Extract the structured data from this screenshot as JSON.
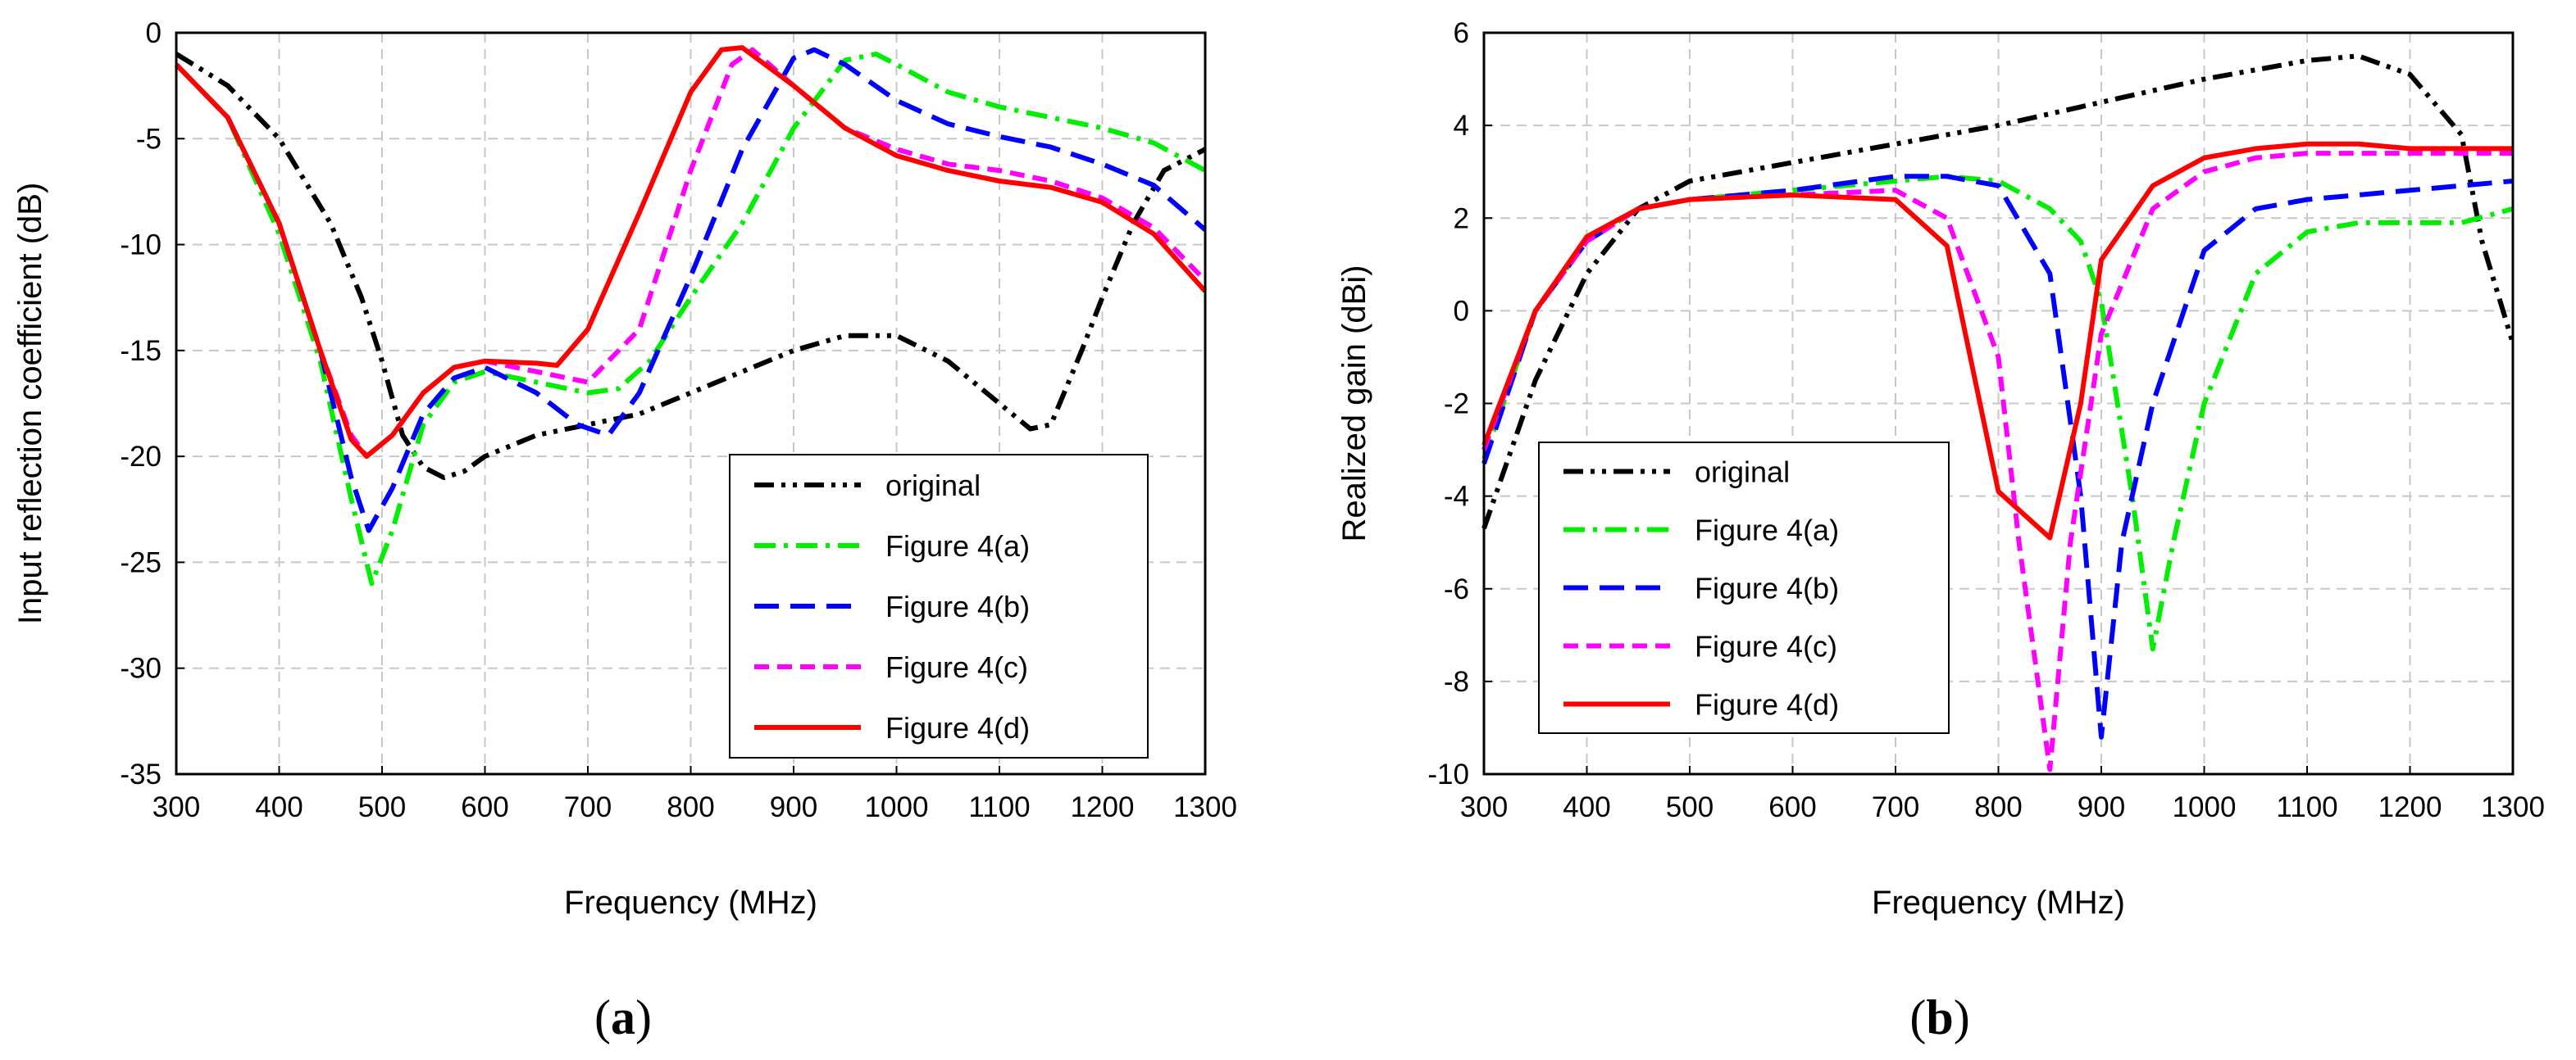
{
  "chart_data": [
    {
      "panel_label": "a",
      "type": "line",
      "xlabel": "Frequency (MHz)",
      "ylabel": "Input reflection coefficient (dB)",
      "xlim": [
        300,
        1300
      ],
      "ylim": [
        -35,
        0
      ],
      "xticks": [
        300,
        400,
        500,
        600,
        700,
        800,
        900,
        1000,
        1100,
        1200,
        1300
      ],
      "yticks": [
        -35,
        -30,
        -25,
        -20,
        -15,
        -10,
        -5,
        0
      ],
      "grid": true,
      "legend_position": "bottom-right",
      "series": [
        {
          "name": "original",
          "color": "#000000",
          "dash": "dashdotdot",
          "x": [
            300,
            350,
            400,
            450,
            480,
            500,
            520,
            540,
            560,
            580,
            600,
            650,
            700,
            750,
            800,
            850,
            900,
            950,
            1000,
            1050,
            1100,
            1130,
            1150,
            1180,
            1200,
            1230,
            1260,
            1300
          ],
          "y": [
            -1,
            -2.5,
            -5,
            -9,
            -12.5,
            -15.5,
            -19,
            -20.5,
            -21,
            -20.7,
            -20,
            -19,
            -18.5,
            -18,
            -17,
            -16,
            -15,
            -14.3,
            -14.3,
            -15.5,
            -17.5,
            -18.7,
            -18.5,
            -15,
            -12.5,
            -9,
            -6.5,
            -5.5
          ]
        },
        {
          "name": "Figure 4(a)",
          "color": "#00ee00",
          "dash": "dashdot",
          "x": [
            300,
            350,
            400,
            440,
            470,
            490,
            510,
            540,
            570,
            600,
            650,
            700,
            730,
            760,
            800,
            850,
            900,
            950,
            980,
            1000,
            1050,
            1100,
            1150,
            1200,
            1250,
            1300
          ],
          "y": [
            -1.5,
            -4,
            -9.5,
            -15.5,
            -22,
            -26,
            -23.5,
            -18.5,
            -16.5,
            -16,
            -16.5,
            -17,
            -16.8,
            -15.5,
            -12.5,
            -9,
            -4.5,
            -1.3,
            -1,
            -1.5,
            -2.8,
            -3.5,
            -4,
            -4.5,
            -5.2,
            -6.5
          ]
        },
        {
          "name": "Figure 4(b)",
          "color": "#0000ff",
          "dash": "dash",
          "x": [
            300,
            350,
            400,
            440,
            470,
            487,
            510,
            540,
            570,
            600,
            650,
            690,
            720,
            750,
            800,
            850,
            900,
            920,
            950,
            1000,
            1050,
            1100,
            1150,
            1200,
            1250,
            1300
          ],
          "y": [
            -1.5,
            -4,
            -9,
            -15,
            -21,
            -23.5,
            -21.5,
            -18,
            -16.3,
            -15.8,
            -17,
            -18.5,
            -19,
            -17,
            -11.5,
            -5.5,
            -1.2,
            -0.8,
            -1.5,
            -3.2,
            -4.3,
            -4.9,
            -5.4,
            -6.2,
            -7.2,
            -9.3
          ]
        },
        {
          "name": "Figure 4(c)",
          "color": "#ff00ff",
          "dash": "shortdash",
          "x": [
            300,
            350,
            400,
            440,
            470,
            485,
            510,
            540,
            570,
            600,
            650,
            700,
            750,
            800,
            840,
            860,
            900,
            950,
            1000,
            1050,
            1100,
            1150,
            1200,
            1250,
            1300
          ],
          "y": [
            -1.5,
            -4,
            -9,
            -15,
            -19,
            -20,
            -19,
            -17,
            -15.8,
            -15.5,
            -16,
            -16.5,
            -14,
            -6.5,
            -1.5,
            -0.8,
            -2.5,
            -4.5,
            -5.5,
            -6.2,
            -6.5,
            -7,
            -7.8,
            -9.2,
            -11.7
          ]
        },
        {
          "name": "Figure 4(d)",
          "color": "#ff0000",
          "dash": "solid",
          "x": [
            300,
            350,
            400,
            440,
            470,
            485,
            510,
            540,
            570,
            600,
            650,
            670,
            700,
            750,
            800,
            830,
            850,
            900,
            950,
            1000,
            1050,
            1100,
            1150,
            1200,
            1250,
            1300
          ],
          "y": [
            -1.5,
            -4,
            -9,
            -15,
            -19.2,
            -20,
            -19,
            -17,
            -15.8,
            -15.5,
            -15.6,
            -15.7,
            -14,
            -8.5,
            -2.8,
            -0.8,
            -0.7,
            -2.5,
            -4.5,
            -5.8,
            -6.5,
            -7,
            -7.3,
            -8,
            -9.5,
            -12.2
          ]
        }
      ]
    },
    {
      "panel_label": "b",
      "type": "line",
      "xlabel": "Frequency (MHz)",
      "ylabel": "Realized gain (dBi)",
      "xlim": [
        300,
        1300
      ],
      "ylim": [
        -10,
        6
      ],
      "xticks": [
        300,
        400,
        500,
        600,
        700,
        800,
        900,
        1000,
        1100,
        1200,
        1300
      ],
      "yticks": [
        -10,
        -8,
        -6,
        -4,
        -2,
        0,
        2,
        4,
        6
      ],
      "grid": true,
      "legend_position": "bottom-left",
      "series": [
        {
          "name": "original",
          "color": "#000000",
          "dash": "dashdotdot",
          "x": [
            300,
            350,
            400,
            450,
            500,
            600,
            700,
            800,
            900,
            1000,
            1050,
            1100,
            1150,
            1200,
            1250,
            1270,
            1300
          ],
          "y": [
            -4.7,
            -1.5,
            0.8,
            2.2,
            2.8,
            3.2,
            3.6,
            4.0,
            4.5,
            5.0,
            5.2,
            5.4,
            5.5,
            5.1,
            3.8,
            1.5,
            -0.7
          ]
        },
        {
          "name": "Figure 4(a)",
          "color": "#00ee00",
          "dash": "dashdot",
          "x": [
            300,
            350,
            400,
            450,
            500,
            600,
            700,
            750,
            800,
            850,
            880,
            900,
            930,
            950,
            970,
            1000,
            1050,
            1100,
            1150,
            1200,
            1250,
            1300
          ],
          "y": [
            -3.2,
            0,
            1.5,
            2.2,
            2.4,
            2.6,
            2.8,
            2.9,
            2.8,
            2.2,
            1.5,
            0.2,
            -4,
            -7.3,
            -5,
            -2,
            0.8,
            1.7,
            1.9,
            1.9,
            1.9,
            2.2
          ]
        },
        {
          "name": "Figure 4(b)",
          "color": "#0000ff",
          "dash": "dash",
          "x": [
            300,
            350,
            400,
            450,
            500,
            600,
            700,
            750,
            800,
            850,
            880,
            900,
            920,
            950,
            1000,
            1050,
            1100,
            1150,
            1200,
            1250,
            1300
          ],
          "y": [
            -3.3,
            0,
            1.5,
            2.2,
            2.4,
            2.6,
            2.9,
            2.9,
            2.7,
            0.8,
            -4,
            -9.2,
            -5,
            -2,
            1.3,
            2.2,
            2.4,
            2.5,
            2.6,
            2.7,
            2.8
          ]
        },
        {
          "name": "Figure 4(c)",
          "color": "#ff00ff",
          "dash": "shortdash",
          "x": [
            300,
            350,
            400,
            450,
            500,
            600,
            700,
            750,
            800,
            820,
            850,
            870,
            900,
            950,
            1000,
            1050,
            1100,
            1150,
            1200,
            1250,
            1300
          ],
          "y": [
            -3,
            0,
            1.5,
            2.2,
            2.4,
            2.5,
            2.6,
            2,
            -1,
            -5,
            -9.9,
            -5,
            -0.5,
            2.2,
            3,
            3.3,
            3.4,
            3.4,
            3.4,
            3.4,
            3.4
          ]
        },
        {
          "name": "Figure 4(d)",
          "color": "#ff0000",
          "dash": "solid",
          "x": [
            300,
            350,
            400,
            450,
            500,
            600,
            700,
            750,
            800,
            850,
            880,
            900,
            950,
            1000,
            1050,
            1100,
            1150,
            1200,
            1250,
            1300
          ],
          "y": [
            -2.9,
            0,
            1.6,
            2.2,
            2.4,
            2.5,
            2.4,
            1.4,
            -3.9,
            -4.9,
            -2,
            1.1,
            2.7,
            3.3,
            3.5,
            3.6,
            3.6,
            3.5,
            3.5,
            3.5
          ]
        }
      ]
    }
  ]
}
